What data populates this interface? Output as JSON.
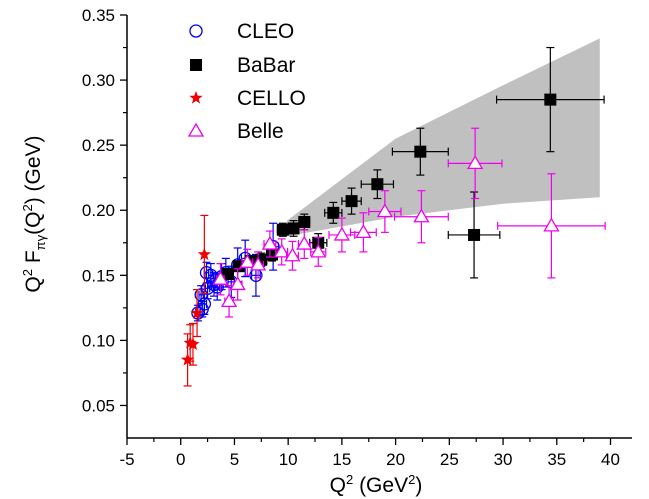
{
  "chart_data": {
    "type": "scatter",
    "title": "",
    "xlabel": "Q² (GeV²)",
    "ylabel_parts": {
      "q": "Q",
      "two": "2",
      "f": "F",
      "sub": "πγ",
      "paren_open": "(Q",
      "paren_two": "2",
      "unit": ") (GeV)"
    },
    "xlabel_parts": {
      "q": "Q",
      "two": "2",
      "open": " (GeV",
      "two_b": "2",
      "close": ")"
    },
    "xlim": [
      -5,
      42
    ],
    "ylim": [
      0.025,
      0.35
    ],
    "xticks": [
      -5,
      0,
      5,
      10,
      15,
      20,
      25,
      30,
      35,
      40
    ],
    "xtick_labels": [
      "-5",
      "0",
      "5",
      "10",
      "15",
      "20",
      "25",
      "30",
      "35",
      "40"
    ],
    "yticks": [
      0.05,
      0.1,
      0.15,
      0.2,
      0.25,
      0.3,
      0.35
    ],
    "ytick_labels": [
      "0.05",
      "0.10",
      "0.15",
      "0.20",
      "0.25",
      "0.30",
      "0.35"
    ],
    "grid": false,
    "legend_position": "top-left",
    "band": {
      "color": "#c0c0c0",
      "upper": [
        [
          9.9,
          0.192
        ],
        [
          20,
          0.255
        ],
        [
          30,
          0.296
        ],
        [
          39,
          0.332
        ]
      ],
      "lower": [
        [
          9.9,
          0.18
        ],
        [
          20,
          0.195
        ],
        [
          30,
          0.205
        ],
        [
          39,
          0.21
        ]
      ]
    },
    "series": [
      {
        "name": "CLEO",
        "marker": "circle-open",
        "color": "#0000ee",
        "points": [
          {
            "x": 1.6,
            "y": 0.121,
            "yerr": 0.006,
            "xerr": 0.2
          },
          {
            "x": 1.9,
            "y": 0.135,
            "yerr": 0.007,
            "xerr": 0.2
          },
          {
            "x": 2.2,
            "y": 0.128,
            "yerr": 0.008,
            "xerr": 0.2
          },
          {
            "x": 2.5,
            "y": 0.14,
            "yerr": 0.008,
            "xerr": 0.2
          },
          {
            "x": 2.8,
            "y": 0.15,
            "yerr": 0.009,
            "xerr": 0.2
          },
          {
            "x": 3.1,
            "y": 0.143,
            "yerr": 0.009,
            "xerr": 0.2
          },
          {
            "x": 3.4,
            "y": 0.141,
            "yerr": 0.01,
            "xerr": 0.2
          },
          {
            "x": 3.8,
            "y": 0.149,
            "yerr": 0.01,
            "xerr": 0.25
          },
          {
            "x": 4.2,
            "y": 0.152,
            "yerr": 0.011,
            "xerr": 0.25
          },
          {
            "x": 4.7,
            "y": 0.145,
            "yerr": 0.012,
            "xerr": 0.3
          },
          {
            "x": 5.3,
            "y": 0.158,
            "yerr": 0.013,
            "xerr": 0.3
          },
          {
            "x": 6.0,
            "y": 0.163,
            "yerr": 0.014,
            "xerr": 0.35
          },
          {
            "x": 7.0,
            "y": 0.15,
            "yerr": 0.016,
            "xerr": 0.4
          },
          {
            "x": 8.6,
            "y": 0.172,
            "yerr": 0.018,
            "xerr": 0.5
          },
          {
            "x": 2.0,
            "y": 0.124,
            "yerr": 0.006,
            "xerr": 0.2
          },
          {
            "x": 2.4,
            "y": 0.152,
            "yerr": 0.008,
            "xerr": 0.2
          }
        ]
      },
      {
        "name": "BaBar",
        "marker": "square-filled",
        "color": "#000000",
        "points": [
          {
            "x": 4.4,
            "y": 0.151,
            "yerr": 0.004,
            "xerr": 0.4
          },
          {
            "x": 5.4,
            "y": 0.157,
            "yerr": 0.004,
            "xerr": 0.4
          },
          {
            "x": 6.5,
            "y": 0.161,
            "yerr": 0.004,
            "xerr": 0.5
          },
          {
            "x": 7.5,
            "y": 0.162,
            "yerr": 0.005,
            "xerr": 0.5
          },
          {
            "x": 8.5,
            "y": 0.166,
            "yerr": 0.005,
            "xerr": 0.5
          },
          {
            "x": 9.5,
            "y": 0.185,
            "yerr": 0.005,
            "xerr": 0.5
          },
          {
            "x": 10.5,
            "y": 0.186,
            "yerr": 0.006,
            "xerr": 0.5
          },
          {
            "x": 11.5,
            "y": 0.191,
            "yerr": 0.006,
            "xerr": 0.5
          },
          {
            "x": 12.8,
            "y": 0.175,
            "yerr": 0.007,
            "xerr": 0.8
          },
          {
            "x": 14.2,
            "y": 0.198,
            "yerr": 0.008,
            "xerr": 0.8
          },
          {
            "x": 15.9,
            "y": 0.207,
            "yerr": 0.01,
            "xerr": 0.9
          },
          {
            "x": 18.3,
            "y": 0.22,
            "yerr": 0.011,
            "xerr": 1.5
          },
          {
            "x": 22.3,
            "y": 0.245,
            "yerr": 0.018,
            "xerr": 2.6
          },
          {
            "x": 27.3,
            "y": 0.181,
            "yerr": 0.033,
            "xerr": 2.4
          },
          {
            "x": 34.4,
            "y": 0.285,
            "yerr": 0.04,
            "xerr": 5.0
          }
        ]
      },
      {
        "name": "CELLO",
        "marker": "star-filled",
        "color": "#ee0000",
        "points": [
          {
            "x": 0.64,
            "y": 0.085,
            "yerr": 0.02,
            "xerr": 0.0
          },
          {
            "x": 0.88,
            "y": 0.098,
            "yerr": 0.014,
            "xerr": 0.0
          },
          {
            "x": 1.14,
            "y": 0.097,
            "yerr": 0.016,
            "xerr": 0.0
          },
          {
            "x": 1.52,
            "y": 0.121,
            "yerr": 0.018,
            "xerr": 0.0
          },
          {
            "x": 2.2,
            "y": 0.166,
            "yerr": 0.03,
            "xerr": 0.0
          }
        ]
      },
      {
        "name": "Belle",
        "marker": "triangle-open",
        "color": "#ee00ee",
        "points": [
          {
            "x": 3.7,
            "y": 0.147,
            "yerr": 0.012,
            "xerr": 0.35
          },
          {
            "x": 4.5,
            "y": 0.13,
            "yerr": 0.012,
            "xerr": 0.4
          },
          {
            "x": 5.3,
            "y": 0.143,
            "yerr": 0.012,
            "xerr": 0.4
          },
          {
            "x": 6.2,
            "y": 0.16,
            "yerr": 0.01,
            "xerr": 0.5
          },
          {
            "x": 7.2,
            "y": 0.158,
            "yerr": 0.01,
            "xerr": 0.5
          },
          {
            "x": 8.3,
            "y": 0.174,
            "yerr": 0.01,
            "xerr": 0.55
          },
          {
            "x": 9.4,
            "y": 0.168,
            "yerr": 0.01,
            "xerr": 0.55
          },
          {
            "x": 10.4,
            "y": 0.165,
            "yerr": 0.011,
            "xerr": 0.55
          },
          {
            "x": 11.5,
            "y": 0.174,
            "yerr": 0.011,
            "xerr": 0.55
          },
          {
            "x": 12.8,
            "y": 0.168,
            "yerr": 0.011,
            "xerr": 0.7
          },
          {
            "x": 15.0,
            "y": 0.181,
            "yerr": 0.013,
            "xerr": 1.2
          },
          {
            "x": 17.0,
            "y": 0.183,
            "yerr": 0.015,
            "xerr": 1.2
          },
          {
            "x": 19.0,
            "y": 0.199,
            "yerr": 0.016,
            "xerr": 1.5
          },
          {
            "x": 22.4,
            "y": 0.195,
            "yerr": 0.02,
            "xerr": 2.5
          },
          {
            "x": 27.4,
            "y": 0.236,
            "yerr": 0.027,
            "xerr": 2.5
          },
          {
            "x": 34.5,
            "y": 0.188,
            "yerr": 0.04,
            "xerr": 5.0
          }
        ]
      }
    ]
  }
}
